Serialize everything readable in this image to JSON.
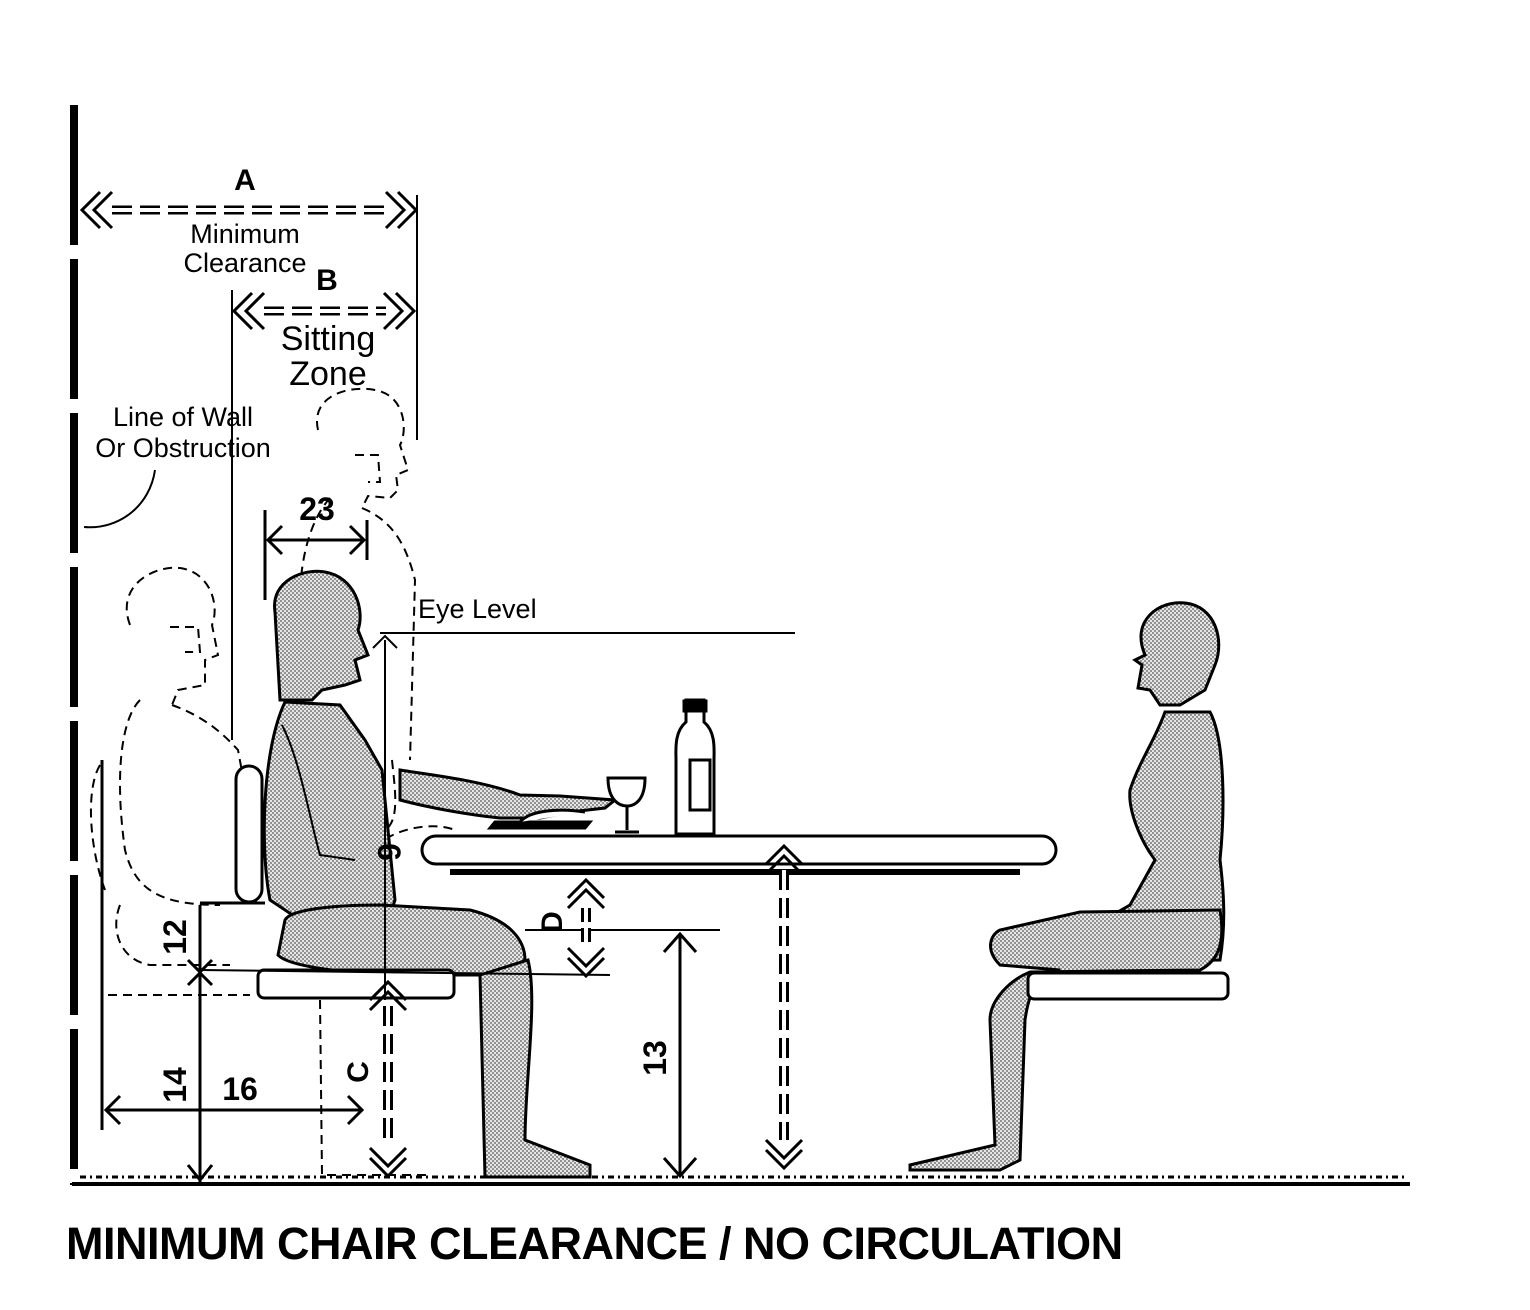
{
  "title": "MINIMUM CHAIR CLEARANCE / NO CIRCULATION",
  "labels": {
    "a": "A",
    "minimum": "Minimum",
    "clearance": "Clearance",
    "b": "B",
    "sitting": "Sitting",
    "zone": "Zone",
    "wall_line1": "Line of Wall",
    "wall_line2": "Or Obstruction",
    "eye_level": "Eye Level",
    "c": "C",
    "d": "D"
  },
  "dimensions": {
    "d23": "23",
    "d6": "6",
    "d12": "12",
    "d14": "14",
    "d16": "16",
    "d13": "13"
  },
  "colors": {
    "ink": "#000000",
    "figure_fill": "#d4d4d4",
    "paper": "#ffffff"
  }
}
